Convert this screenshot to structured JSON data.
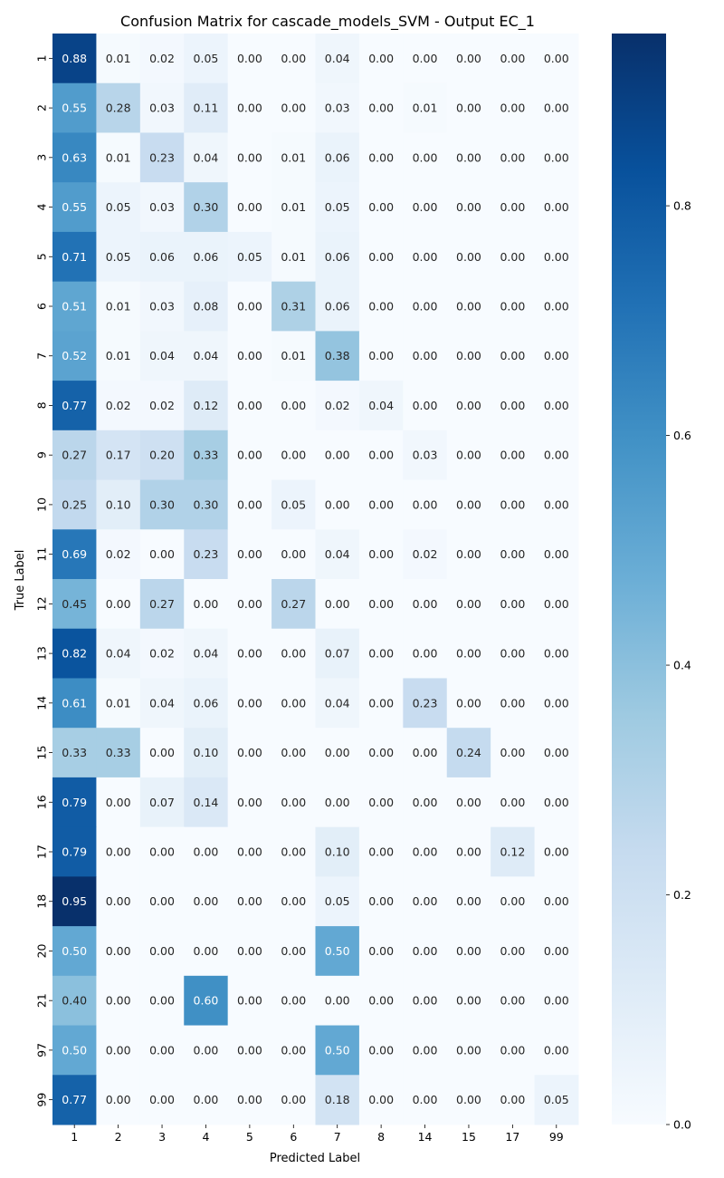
{
  "chart_data": {
    "type": "heatmap",
    "title": "Confusion Matrix for cascade_models_SVM - Output EC_1",
    "xlabel": "Predicted Label",
    "ylabel": "True Label",
    "x_labels": [
      "1",
      "2",
      "3",
      "4",
      "5",
      "6",
      "7",
      "8",
      "14",
      "15",
      "17",
      "99"
    ],
    "y_labels": [
      "1",
      "2",
      "3",
      "4",
      "5",
      "6",
      "7",
      "8",
      "9",
      "10",
      "11",
      "12",
      "13",
      "14",
      "15",
      "16",
      "17",
      "18",
      "20",
      "21",
      "97",
      "99"
    ],
    "values": [
      [
        0.88,
        0.01,
        0.02,
        0.05,
        0.0,
        0.0,
        0.04,
        0.0,
        0.0,
        0.0,
        0.0,
        0.0
      ],
      [
        0.55,
        0.28,
        0.03,
        0.11,
        0.0,
        0.0,
        0.03,
        0.0,
        0.01,
        0.0,
        0.0,
        0.0
      ],
      [
        0.63,
        0.01,
        0.23,
        0.04,
        0.0,
        0.01,
        0.06,
        0.0,
        0.0,
        0.0,
        0.0,
        0.0
      ],
      [
        0.55,
        0.05,
        0.03,
        0.3,
        0.0,
        0.01,
        0.05,
        0.0,
        0.0,
        0.0,
        0.0,
        0.0
      ],
      [
        0.71,
        0.05,
        0.06,
        0.06,
        0.05,
        0.01,
        0.06,
        0.0,
        0.0,
        0.0,
        0.0,
        0.0
      ],
      [
        0.51,
        0.01,
        0.03,
        0.08,
        0.0,
        0.31,
        0.06,
        0.0,
        0.0,
        0.0,
        0.0,
        0.0
      ],
      [
        0.52,
        0.01,
        0.04,
        0.04,
        0.0,
        0.01,
        0.38,
        0.0,
        0.0,
        0.0,
        0.0,
        0.0
      ],
      [
        0.77,
        0.02,
        0.02,
        0.12,
        0.0,
        0.0,
        0.02,
        0.04,
        0.0,
        0.0,
        0.0,
        0.0
      ],
      [
        0.27,
        0.17,
        0.2,
        0.33,
        0.0,
        0.0,
        0.0,
        0.0,
        0.03,
        0.0,
        0.0,
        0.0
      ],
      [
        0.25,
        0.1,
        0.3,
        0.3,
        0.0,
        0.05,
        0.0,
        0.0,
        0.0,
        0.0,
        0.0,
        0.0
      ],
      [
        0.69,
        0.02,
        0.0,
        0.23,
        0.0,
        0.0,
        0.04,
        0.0,
        0.02,
        0.0,
        0.0,
        0.0
      ],
      [
        0.45,
        0.0,
        0.27,
        0.0,
        0.0,
        0.27,
        0.0,
        0.0,
        0.0,
        0.0,
        0.0,
        0.0
      ],
      [
        0.82,
        0.04,
        0.02,
        0.04,
        0.0,
        0.0,
        0.07,
        0.0,
        0.0,
        0.0,
        0.0,
        0.0
      ],
      [
        0.61,
        0.01,
        0.04,
        0.06,
        0.0,
        0.0,
        0.04,
        0.0,
        0.23,
        0.0,
        0.0,
        0.0
      ],
      [
        0.33,
        0.33,
        0.0,
        0.1,
        0.0,
        0.0,
        0.0,
        0.0,
        0.0,
        0.24,
        0.0,
        0.0
      ],
      [
        0.79,
        0.0,
        0.07,
        0.14,
        0.0,
        0.0,
        0.0,
        0.0,
        0.0,
        0.0,
        0.0,
        0.0
      ],
      [
        0.79,
        0.0,
        0.0,
        0.0,
        0.0,
        0.0,
        0.1,
        0.0,
        0.0,
        0.0,
        0.12,
        0.0
      ],
      [
        0.95,
        0.0,
        0.0,
        0.0,
        0.0,
        0.0,
        0.05,
        0.0,
        0.0,
        0.0,
        0.0,
        0.0
      ],
      [
        0.5,
        0.0,
        0.0,
        0.0,
        0.0,
        0.0,
        0.5,
        0.0,
        0.0,
        0.0,
        0.0,
        0.0
      ],
      [
        0.4,
        0.0,
        0.0,
        0.6,
        0.0,
        0.0,
        0.0,
        0.0,
        0.0,
        0.0,
        0.0,
        0.0
      ],
      [
        0.5,
        0.0,
        0.0,
        0.0,
        0.0,
        0.0,
        0.5,
        0.0,
        0.0,
        0.0,
        0.0,
        0.0
      ],
      [
        0.77,
        0.0,
        0.0,
        0.0,
        0.0,
        0.0,
        0.18,
        0.0,
        0.0,
        0.0,
        0.0,
        0.05
      ]
    ],
    "colormap": "Blues",
    "value_range": [
      0,
      0.95
    ],
    "colorbar_ticks": [
      0.0,
      0.2,
      0.4,
      0.6,
      0.8
    ],
    "colorbar_tick_labels": [
      "0.0",
      "0.2",
      "0.4",
      "0.6",
      "0.8"
    ],
    "text_color_light": "#ffffff",
    "text_color_dark": "#262626"
  }
}
